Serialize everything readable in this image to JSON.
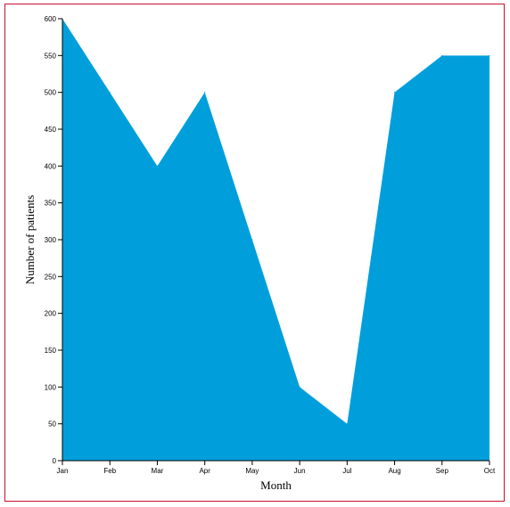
{
  "chart_data": {
    "type": "area",
    "title": "",
    "xlabel": "Month",
    "ylabel": "Number of patients",
    "categories": [
      "Jan",
      "Feb",
      "Mar",
      "Apr",
      "May",
      "Jun",
      "Jul",
      "Aug",
      "Sep",
      "Oct"
    ],
    "series": [
      {
        "values": [
          600,
          500,
          400,
          500,
          300,
          100,
          50,
          500,
          550,
          550
        ],
        "color": "#009fdb"
      }
    ],
    "ylim": [
      0,
      600
    ],
    "yticks": [
      0,
      50,
      100,
      150,
      200,
      250,
      300,
      350,
      400,
      450,
      500,
      550,
      600
    ],
    "grid": false,
    "legend": "none"
  },
  "frame": {
    "border_color": "#c8102e"
  }
}
